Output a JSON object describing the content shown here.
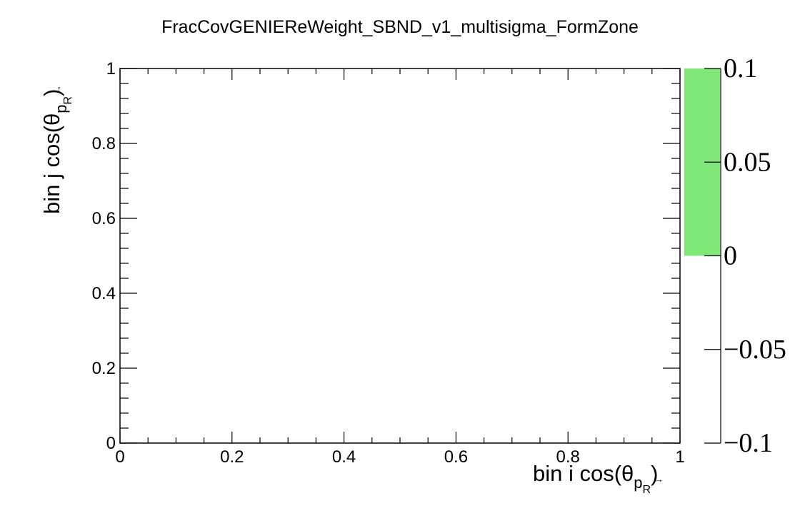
{
  "chart_data": {
    "type": "heatmap",
    "title": "FracCovGENIEReWeight_SBND_v1_multisigma_FormZone",
    "xlabel": {
      "prefix": "bin i cos(θ",
      "vec": "p",
      "sub": "R",
      "suffix": ")"
    },
    "ylabel": {
      "prefix": "bin j cos(θ",
      "vec": "p",
      "sub": "R",
      "suffix": ")"
    },
    "xlim": [
      0,
      1
    ],
    "ylim": [
      0,
      1
    ],
    "x_ticks": [
      "0",
      "0.2",
      "0.4",
      "0.6",
      "0.8",
      "1"
    ],
    "y_ticks": [
      "0",
      "0.2",
      "0.4",
      "0.6",
      "0.8",
      "1"
    ],
    "cells": [],
    "colorbar": {
      "range": [
        -0.1,
        0.1
      ],
      "ticks": [
        "0.1",
        "0.05",
        "0",
        "−0.05",
        "−0.1"
      ],
      "fill_from": 0,
      "fill_to": 0.1,
      "fill_color": "#80e878"
    },
    "grid": false
  }
}
